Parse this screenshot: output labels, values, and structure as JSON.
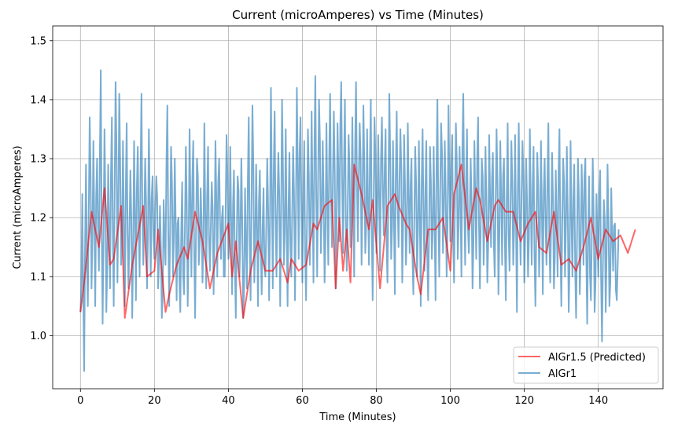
{
  "chart_data": {
    "type": "line",
    "title": "Current (microAmperes) vs Time (Minutes)",
    "xlabel": "Time (Minutes)",
    "ylabel": "Current (microAmperes)",
    "xlim": [
      -7.5,
      157.5
    ],
    "ylim": [
      0.91,
      1.525
    ],
    "xticks": [
      0,
      20,
      40,
      60,
      80,
      100,
      120,
      140
    ],
    "yticks": [
      1.0,
      1.1,
      1.2,
      1.3,
      1.4,
      1.5
    ],
    "xtick_labels": [
      "0",
      "20",
      "40",
      "60",
      "80",
      "100",
      "120",
      "140"
    ],
    "ytick_labels": [
      "1.0",
      "1.1",
      "1.2",
      "1.3",
      "1.4",
      "1.5"
    ],
    "grid": true,
    "legend_position": "lower-right",
    "series": [
      {
        "name": "AlGr1",
        "color": "#1f77b4",
        "opacity": 0.6,
        "sampling": "every 0.25 minutes from 0 to 150",
        "anchors_x": [
          0,
          0.5,
          1,
          1.5,
          2,
          2.5,
          3,
          3.5,
          4,
          4.5,
          5,
          5.5,
          6,
          6.5,
          7,
          7.5,
          8,
          8.5,
          9,
          9.5,
          10,
          10.5,
          11,
          11.5,
          12,
          12.5,
          13,
          13.5,
          14,
          14.5,
          15,
          15.5,
          16,
          16.5,
          17,
          17.5,
          18,
          18.5,
          19,
          19.5,
          20,
          20.5,
          21,
          21.5,
          22,
          22.5,
          23,
          23.5,
          24,
          24.5,
          25,
          25.5,
          26,
          26.5,
          27,
          27.5,
          28,
          28.5,
          29,
          29.5,
          30,
          30.5,
          31,
          31.5,
          32,
          32.5,
          33,
          33.5,
          34,
          34.5,
          35,
          35.5,
          36,
          36.5,
          37,
          37.5,
          38,
          38.5,
          39,
          39.5,
          40,
          40.5,
          41,
          41.5,
          42,
          42.5,
          43,
          43.5,
          44,
          44.5,
          45,
          45.5,
          46,
          46.5,
          47,
          47.5,
          48,
          48.5,
          49,
          49.5,
          50,
          50.5,
          51,
          51.5,
          52,
          52.5,
          53,
          53.5,
          54,
          54.5,
          55,
          55.5,
          56,
          56.5,
          57,
          57.5,
          58,
          58.5,
          59,
          59.5,
          60,
          60.5,
          61,
          61.5,
          62,
          62.5,
          63,
          63.5,
          64,
          64.5,
          65,
          65.5,
          66,
          66.5,
          67,
          67.5,
          68,
          68.5,
          69,
          69.5,
          70,
          70.5,
          71,
          71.5,
          72,
          72.5,
          73,
          73.5,
          74,
          74.5,
          75,
          75.5,
          76,
          76.5,
          77,
          77.5,
          78,
          78.5,
          79,
          79.5,
          80,
          80.5,
          81,
          81.5,
          82,
          82.5,
          83,
          83.5,
          84,
          84.5,
          85,
          85.5,
          86,
          86.5,
          87,
          87.5,
          88,
          88.5,
          89,
          89.5,
          90,
          90.5,
          91,
          91.5,
          92,
          92.5,
          93,
          93.5,
          94,
          94.5,
          95,
          95.5,
          96,
          96.5,
          97,
          97.5,
          98,
          98.5,
          99,
          99.5,
          100,
          100.5,
          101,
          101.5,
          102,
          102.5,
          103,
          103.5,
          104,
          104.5,
          105,
          105.5,
          106,
          106.5,
          107,
          107.5,
          108,
          108.5,
          109,
          109.5,
          110,
          110.5,
          111,
          111.5,
          112,
          112.5,
          113,
          113.5,
          114,
          114.5,
          115,
          115.5,
          116,
          116.5,
          117,
          117.5,
          118,
          118.5,
          119,
          119.5,
          120,
          120.5,
          121,
          121.5,
          122,
          122.5,
          123,
          123.5,
          124,
          124.5,
          125,
          125.5,
          126,
          126.5,
          127,
          127.5,
          128,
          128.5,
          129,
          129.5,
          130,
          130.5,
          131,
          131.5,
          132,
          132.5,
          133,
          133.5,
          134,
          134.5,
          135,
          135.5,
          136,
          136.5,
          137,
          137.5,
          138,
          138.5,
          139,
          139.5,
          140,
          140.5,
          141,
          141.5,
          142,
          142.5,
          143,
          143.5,
          144,
          144.5,
          145,
          145.5,
          146,
          146.5,
          147,
          147.5,
          148,
          148.5,
          149,
          149.5,
          150
        ],
        "values": [
          1.04,
          1.24,
          0.94,
          1.29,
          1.05,
          1.37,
          1.08,
          1.33,
          1.05,
          1.3,
          1.11,
          1.45,
          1.02,
          1.35,
          1.04,
          1.29,
          1.08,
          1.37,
          1.05,
          1.43,
          1.09,
          1.41,
          1.12,
          1.33,
          1.05,
          1.36,
          1.08,
          1.28,
          1.03,
          1.33,
          1.06,
          1.32,
          1.1,
          1.41,
          1.12,
          1.3,
          1.08,
          1.35,
          1.1,
          1.27,
          1.13,
          1.27,
          1.08,
          1.22,
          1.03,
          1.23,
          1.12,
          1.39,
          1.05,
          1.32,
          1.1,
          1.3,
          1.06,
          1.2,
          1.04,
          1.26,
          1.07,
          1.32,
          1.05,
          1.35,
          1.1,
          1.33,
          1.03,
          1.3,
          1.12,
          1.25,
          1.09,
          1.36,
          1.08,
          1.32,
          1.11,
          1.26,
          1.07,
          1.33,
          1.1,
          1.3,
          1.13,
          1.22,
          1.1,
          1.34,
          1.13,
          1.32,
          1.07,
          1.28,
          1.03,
          1.27,
          1.1,
          1.3,
          1.03,
          1.25,
          1.08,
          1.37,
          1.06,
          1.39,
          1.09,
          1.29,
          1.05,
          1.28,
          1.07,
          1.25,
          1.1,
          1.3,
          1.06,
          1.42,
          1.08,
          1.38,
          1.1,
          1.31,
          1.05,
          1.4,
          1.12,
          1.35,
          1.05,
          1.31,
          1.1,
          1.32,
          1.06,
          1.42,
          1.13,
          1.37,
          1.09,
          1.33,
          1.06,
          1.35,
          1.12,
          1.38,
          1.09,
          1.44,
          1.1,
          1.4,
          1.14,
          1.33,
          1.09,
          1.36,
          1.12,
          1.41,
          1.15,
          1.38,
          1.08,
          1.36,
          1.16,
          1.43,
          1.14,
          1.4,
          1.11,
          1.34,
          1.15,
          1.37,
          1.1,
          1.43,
          1.16,
          1.36,
          1.12,
          1.39,
          1.14,
          1.35,
          1.12,
          1.4,
          1.06,
          1.37,
          1.14,
          1.34,
          1.11,
          1.37,
          1.17,
          1.35,
          1.09,
          1.41,
          1.13,
          1.33,
          1.07,
          1.38,
          1.15,
          1.35,
          1.09,
          1.34,
          1.12,
          1.36,
          1.14,
          1.3,
          1.07,
          1.32,
          1.1,
          1.33,
          1.05,
          1.35,
          1.11,
          1.33,
          1.06,
          1.32,
          1.13,
          1.32,
          1.06,
          1.4,
          1.1,
          1.36,
          1.14,
          1.33,
          1.1,
          1.39,
          1.16,
          1.34,
          1.09,
          1.36,
          1.13,
          1.32,
          1.1,
          1.41,
          1.12,
          1.35,
          1.14,
          1.3,
          1.08,
          1.33,
          1.13,
          1.37,
          1.08,
          1.3,
          1.12,
          1.32,
          1.09,
          1.34,
          1.15,
          1.31,
          1.1,
          1.35,
          1.07,
          1.33,
          1.12,
          1.3,
          1.06,
          1.36,
          1.11,
          1.33,
          1.12,
          1.34,
          1.04,
          1.36,
          1.12,
          1.33,
          1.09,
          1.3,
          1.1,
          1.35,
          1.12,
          1.32,
          1.05,
          1.31,
          1.1,
          1.33,
          1.07,
          1.3,
          1.12,
          1.36,
          1.09,
          1.31,
          1.08,
          1.28,
          1.1,
          1.35,
          1.05,
          1.3,
          1.1,
          1.32,
          1.04,
          1.33,
          1.1,
          1.29,
          1.03,
          1.3,
          1.07,
          1.29,
          1.12,
          1.3,
          1.02,
          1.27,
          1.06,
          1.3,
          1.04,
          1.24,
          1.1,
          1.28,
          0.99,
          1.23,
          1.04,
          1.29,
          1.05,
          1.25,
          1.11,
          1.19,
          1.06,
          1.18
        ]
      },
      {
        "name": "AlGr1.5 (Predicted)",
        "color": "#ff0000",
        "opacity": 0.6,
        "x": [
          0,
          1,
          3,
          5,
          6.5,
          8,
          9,
          11,
          12,
          14,
          17,
          18,
          20,
          21,
          23,
          24,
          26,
          28,
          29,
          31,
          33,
          35,
          37,
          40,
          41,
          42,
          44,
          46,
          48,
          50,
          52,
          54,
          56,
          57,
          59,
          61,
          63,
          64,
          66,
          68,
          69,
          70,
          71,
          72,
          73,
          74,
          76,
          78,
          79,
          81,
          83,
          85,
          86,
          88,
          89,
          91,
          92,
          94,
          96,
          98,
          100,
          101,
          103,
          105,
          107,
          108,
          110,
          112,
          113,
          115,
          117,
          119,
          121,
          123,
          124,
          126,
          128,
          130,
          132,
          134,
          136,
          138,
          140,
          142,
          144,
          146,
          148,
          150
        ],
        "values": [
          1.04,
          1.09,
          1.21,
          1.15,
          1.25,
          1.12,
          1.13,
          1.22,
          1.03,
          1.12,
          1.22,
          1.1,
          1.11,
          1.18,
          1.04,
          1.07,
          1.12,
          1.15,
          1.13,
          1.21,
          1.16,
          1.08,
          1.14,
          1.19,
          1.1,
          1.16,
          1.03,
          1.11,
          1.16,
          1.11,
          1.11,
          1.13,
          1.09,
          1.13,
          1.11,
          1.12,
          1.19,
          1.18,
          1.22,
          1.23,
          1.08,
          1.2,
          1.11,
          1.18,
          1.09,
          1.29,
          1.24,
          1.18,
          1.23,
          1.08,
          1.22,
          1.24,
          1.22,
          1.19,
          1.18,
          1.1,
          1.07,
          1.18,
          1.18,
          1.2,
          1.11,
          1.24,
          1.29,
          1.18,
          1.25,
          1.23,
          1.16,
          1.22,
          1.23,
          1.21,
          1.21,
          1.16,
          1.19,
          1.21,
          1.15,
          1.14,
          1.21,
          1.12,
          1.13,
          1.11,
          1.15,
          1.2,
          1.13,
          1.18,
          1.16,
          1.17,
          1.14,
          1.18
        ]
      }
    ],
    "legend": [
      "AlGr1.5 (Predicted)",
      "AlGr1"
    ]
  }
}
